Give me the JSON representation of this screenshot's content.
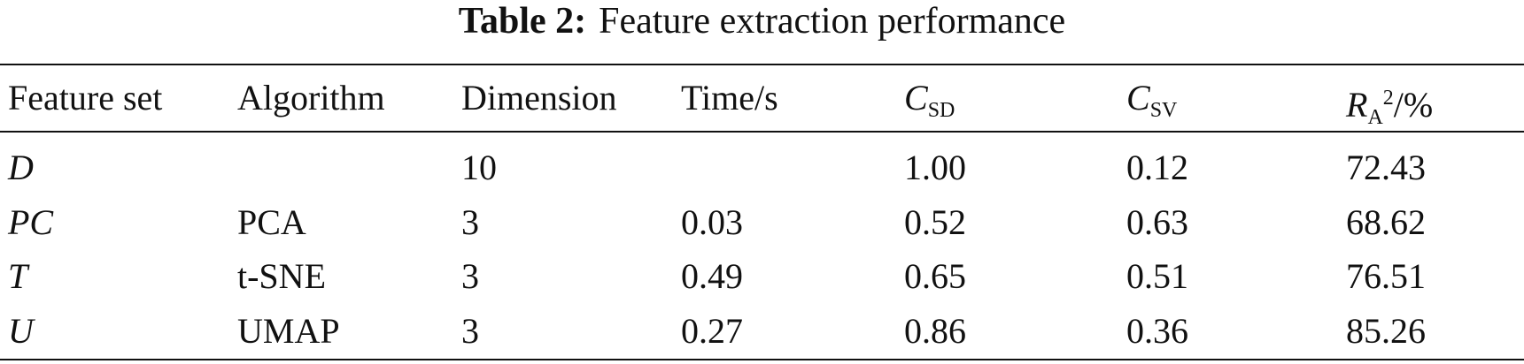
{
  "caption": {
    "label": "Table 2:",
    "text": "Feature extraction performance"
  },
  "table": {
    "headers": [
      {
        "main": "Feature set"
      },
      {
        "main": "Algorithm"
      },
      {
        "main": "Dimension"
      },
      {
        "main": "Time/s"
      },
      {
        "main": "C",
        "sub": "SD"
      },
      {
        "main": "C",
        "sub": "SV"
      },
      {
        "main": "R",
        "sub": "A",
        "sup": "2",
        "rest": "/%"
      }
    ],
    "rows": [
      [
        "D",
        null,
        "10",
        null,
        "1.00",
        "0.12",
        "72.43"
      ],
      [
        "PC",
        "PCA",
        "3",
        "0.03",
        "0.52",
        "0.63",
        "68.62"
      ],
      [
        "T",
        "t-SNE",
        "3",
        "0.49",
        "0.65",
        "0.51",
        "76.51"
      ],
      [
        "U",
        "UMAP",
        "3",
        "0.27",
        "0.86",
        "0.36",
        "85.26"
      ]
    ]
  }
}
